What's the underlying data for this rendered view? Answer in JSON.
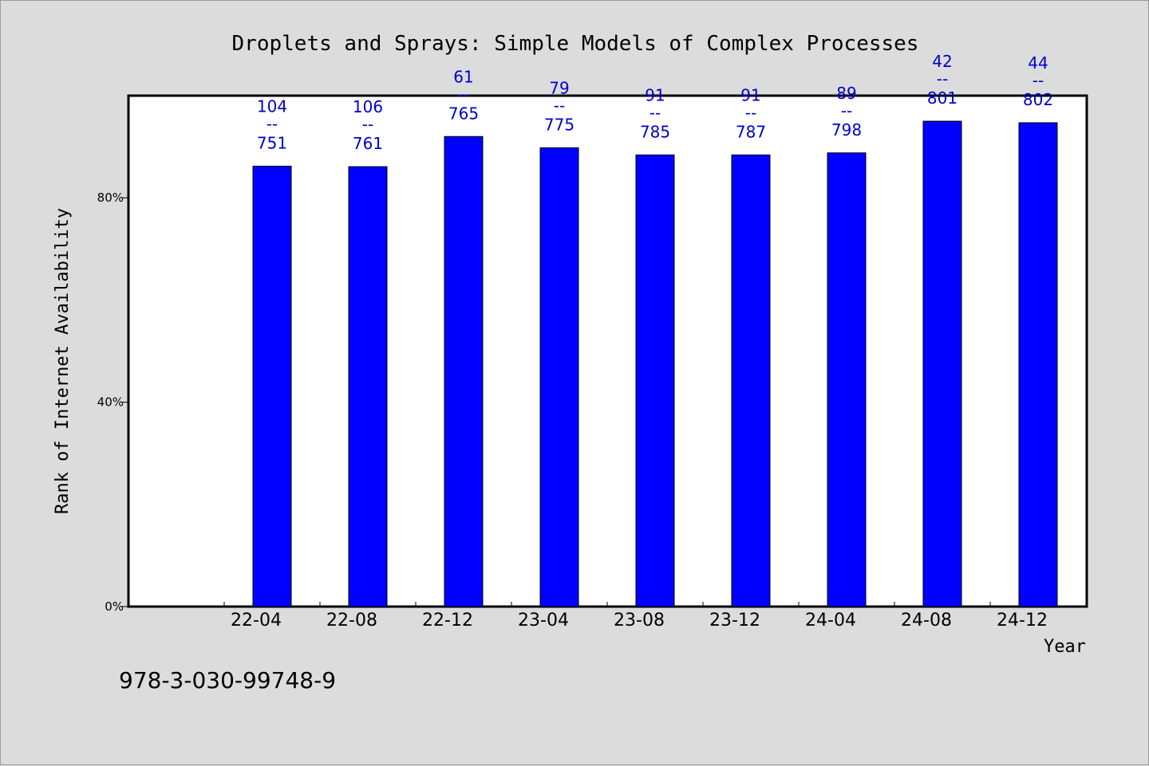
{
  "chart_data": {
    "type": "bar",
    "title": "Droplets and Sprays: Simple Models of Complex Processes",
    "xlabel": "Year",
    "ylabel": "Rank of Internet Availability",
    "categories": [
      "22-04",
      "22-08",
      "22-12",
      "23-04",
      "23-08",
      "23-12",
      "24-04",
      "24-08",
      "24-12"
    ],
    "values": [
      86.2,
      86.1,
      92.0,
      89.8,
      88.4,
      88.4,
      88.8,
      95.0,
      94.7
    ],
    "data_labels": [
      {
        "top": "104",
        "sep": "--",
        "bottom": "751"
      },
      {
        "top": "106",
        "sep": "--",
        "bottom": "761"
      },
      {
        "top": "61",
        "sep": "--",
        "bottom": "765"
      },
      {
        "top": "79",
        "sep": "--",
        "bottom": "775"
      },
      {
        "top": "91",
        "sep": "--",
        "bottom": "785"
      },
      {
        "top": "91",
        "sep": "--",
        "bottom": "787"
      },
      {
        "top": "89",
        "sep": "--",
        "bottom": "798"
      },
      {
        "top": "42",
        "sep": "--",
        "bottom": "801"
      },
      {
        "top": "44",
        "sep": "--",
        "bottom": "802"
      }
    ],
    "yticks": [
      {
        "value": 0,
        "label": "0%"
      },
      {
        "value": 40,
        "label": "40%"
      },
      {
        "value": 80,
        "label": "80%"
      }
    ],
    "ylim": [
      0,
      100
    ],
    "grid": false,
    "legend": "none",
    "bar_color": "#0000ff",
    "label_color": "#0000cc"
  },
  "footer": {
    "isbn": "978-3-030-99748-9"
  }
}
